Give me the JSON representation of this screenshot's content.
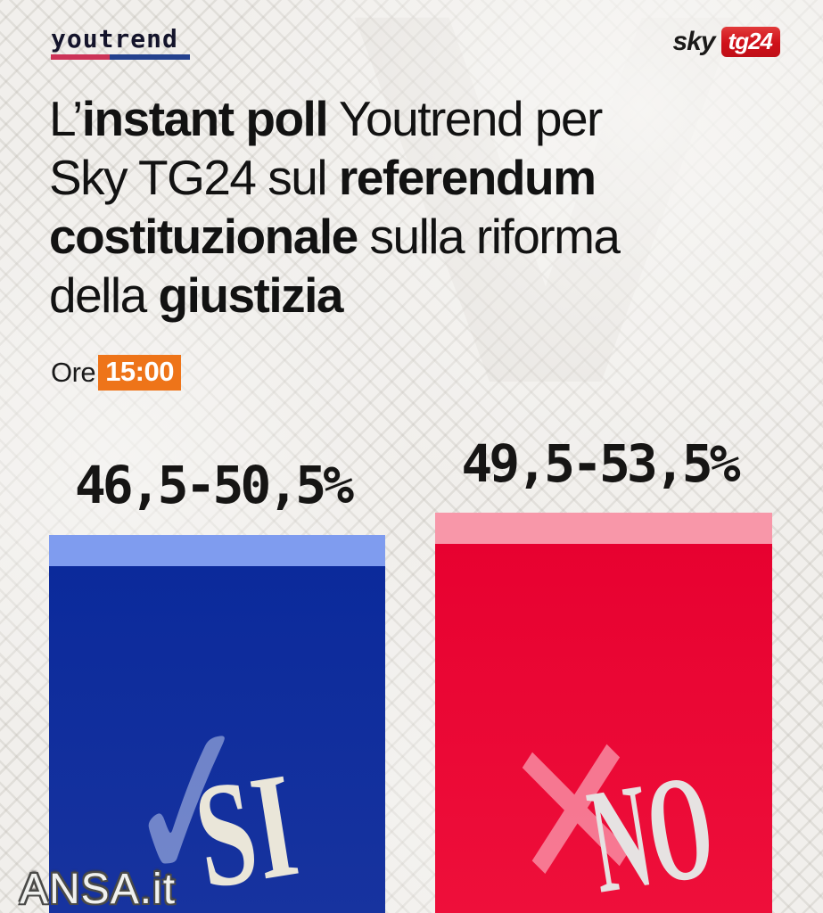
{
  "header": {
    "youtrend": "youtrend",
    "sky": "sky",
    "tg24": "tg24"
  },
  "title": {
    "line1": {
      "pre": "L’",
      "bold": "instant poll",
      "post": " Youtrend per"
    },
    "line2": {
      "pre": "Sky TG24 sul ",
      "bold": "referendum",
      "post": ""
    },
    "line3": {
      "pre": "",
      "bold": "costituzionale",
      "post": " sulla riforma"
    },
    "line4": {
      "pre": "della ",
      "bold": "giustizia",
      "post": ""
    }
  },
  "time": {
    "label": "Ore",
    "value": "15:00"
  },
  "chart_data": {
    "type": "bar",
    "title": "L'instant poll Youtrend per Sky TG24 sul referendum costituzionale sulla riforma della giustizia",
    "unit": "%",
    "categories": [
      "SI",
      "NO"
    ],
    "series": [
      {
        "name": "range_min",
        "values": [
          46.5,
          49.5
        ]
      },
      {
        "name": "range_max",
        "values": [
          50.5,
          53.5
        ]
      }
    ],
    "bars": [
      {
        "label": "SI",
        "range_label": "46,5-50,5%",
        "low": 46.5,
        "high": 50.5,
        "mark_glyph": "✓",
        "mark_name": "check-icon",
        "color": "#0b2a9b",
        "color_bottom": "#17339f",
        "cap_color": "#7f9cef"
      },
      {
        "label": "NO",
        "range_label": "49,5-53,5%",
        "low": 49.5,
        "high": 53.5,
        "mark_glyph": "✕",
        "mark_name": "cross-icon",
        "color": "#e70130",
        "color_bottom": "#ee0f3a",
        "cap_color": "#f897a9"
      }
    ]
  },
  "watermark": {
    "text": "ANSA.it"
  },
  "background": {
    "v_glyph": "V"
  },
  "brand_colors": {
    "youtrend_underline_red": "#cc3357",
    "youtrend_underline_blue": "#24418e",
    "sky_box_red": "#cf1019",
    "time_badge_orange": "#ee7419"
  }
}
